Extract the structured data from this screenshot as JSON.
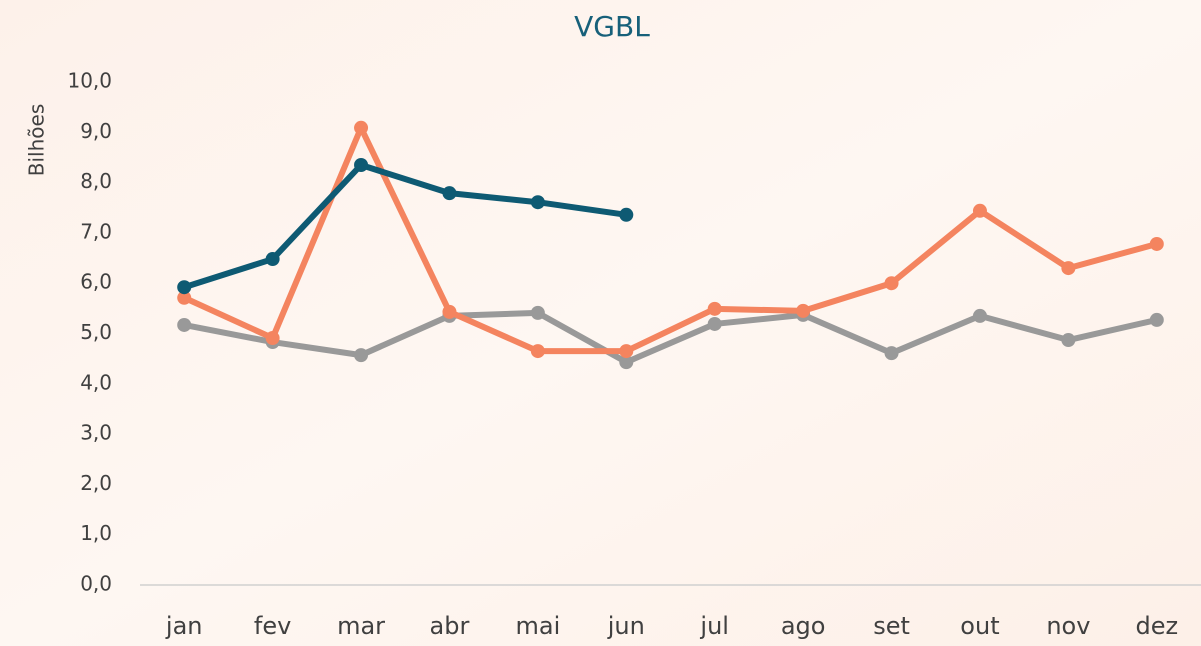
{
  "chart_data": {
    "type": "line",
    "title": "VGBL",
    "y_label": "Bilhões",
    "categories": [
      "jan",
      "fev",
      "mar",
      "abr",
      "mai",
      "jun",
      "jul",
      "ago",
      "set",
      "out",
      "nov",
      "dez"
    ],
    "series": [
      {
        "color": "#999999",
        "values": [
          5.17,
          4.83,
          4.57,
          5.35,
          5.41,
          4.43,
          5.19,
          5.37,
          4.61,
          5.35,
          4.87,
          5.27
        ]
      },
      {
        "color": "#f4845f",
        "values": [
          5.71,
          4.91,
          9.09,
          5.43,
          4.65,
          4.65,
          5.49,
          5.45,
          6.0,
          7.44,
          6.3,
          6.78
        ]
      },
      {
        "color": "#0e5a73",
        "values": [
          5.92,
          6.48,
          8.35,
          7.79,
          7.61,
          7.36,
          null,
          null,
          null,
          null,
          null,
          null
        ]
      }
    ],
    "ylim": [
      0,
      10
    ],
    "yticks": [
      {
        "value": 0,
        "label": "0,0"
      },
      {
        "value": 1,
        "label": "1,0"
      },
      {
        "value": 2,
        "label": "2,0"
      },
      {
        "value": 3,
        "label": "3,0"
      },
      {
        "value": 4,
        "label": "4,0"
      },
      {
        "value": 5,
        "label": "5,0"
      },
      {
        "value": 6,
        "label": "6,0"
      },
      {
        "value": 7,
        "label": "7,0"
      },
      {
        "value": 8,
        "label": "8,0"
      },
      {
        "value": 9,
        "label": "9,0"
      },
      {
        "value": 10,
        "label": "10,0"
      }
    ],
    "grid": false
  }
}
